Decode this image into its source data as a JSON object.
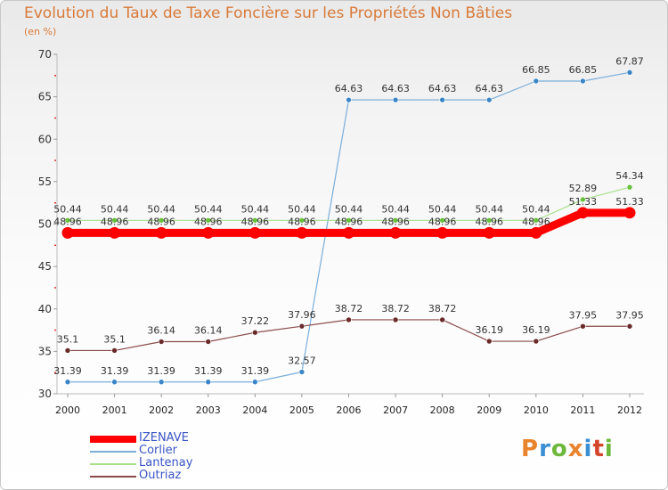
{
  "header": {
    "title": "Evolution du Taux de Taxe Foncière sur les Propriétés Non Bâties",
    "unit": "(en %)"
  },
  "brand": {
    "letters": [
      "P",
      "r",
      "o",
      "x",
      "i",
      "t",
      "i"
    ],
    "colors": [
      "#e8842c",
      "#3a8fd4",
      "#6cb83a",
      "#e8842c",
      "#3a8fd4",
      "#d4442c",
      "#6cb83a"
    ]
  },
  "chart_data": {
    "type": "line",
    "title": "Evolution du Taux de Taxe Foncière sur les Propriétés Non Bâties",
    "ylabel": "(en %)",
    "xlabel": "",
    "x": [
      "2000",
      "2001",
      "2002",
      "2003",
      "2004",
      "2005",
      "2006",
      "2007",
      "2008",
      "2009",
      "2010",
      "2011",
      "2012"
    ],
    "ylim": [
      30,
      70
    ],
    "yticks": [
      30,
      35,
      40,
      45,
      50,
      55,
      60,
      65,
      70
    ],
    "grid": false,
    "legend_position": "bottom-left",
    "series": [
      {
        "name": "IZENAVE",
        "color": "#ff0000",
        "marker": "#ff0000",
        "width": 9,
        "values": [
          48.96,
          48.96,
          48.96,
          48.96,
          48.96,
          48.96,
          48.96,
          48.96,
          48.96,
          48.96,
          48.96,
          51.33,
          51.33
        ],
        "labels": [
          "48.96",
          "48.96",
          "48.96",
          "48.96",
          "48.96",
          "48.96",
          "48.96",
          "48.96",
          "48.96",
          "48.96",
          "48.96",
          "51.33",
          "51.33"
        ]
      },
      {
        "name": "Corlier",
        "color": "#7aaedb",
        "marker": "#3a85c8",
        "width": 1.2,
        "values": [
          31.39,
          31.39,
          31.39,
          31.39,
          31.39,
          32.57,
          64.63,
          64.63,
          64.63,
          64.63,
          66.85,
          66.85,
          67.87
        ],
        "labels": [
          "31.39",
          "31.39",
          "31.39",
          "31.39",
          "31.39",
          "32.57",
          "64.63",
          "64.63",
          "64.63",
          "64.63",
          "66.85",
          "66.85",
          "67.87"
        ]
      },
      {
        "name": "Lantenay",
        "color": "#a8e08a",
        "marker": "#66c23a",
        "width": 1.2,
        "values": [
          50.44,
          50.44,
          50.44,
          50.44,
          50.44,
          50.44,
          50.44,
          50.44,
          50.44,
          50.44,
          50.44,
          52.89,
          54.34
        ],
        "labels": [
          "50.44",
          "50.44",
          "50.44",
          "50.44",
          "50.44",
          "50.44",
          "50.44",
          "50.44",
          "50.44",
          "50.44",
          "50.44",
          "52.89",
          "54.34"
        ]
      },
      {
        "name": "Outriaz",
        "color": "#8a4a4a",
        "marker": "#6a2a2a",
        "width": 1.2,
        "values": [
          35.1,
          35.1,
          36.14,
          36.14,
          37.22,
          37.96,
          38.72,
          38.72,
          38.72,
          36.19,
          36.19,
          37.95,
          37.95
        ],
        "labels": [
          "35.1",
          "35.1",
          "36.14",
          "36.14",
          "37.22",
          "37.96",
          "38.72",
          "38.72",
          "38.72",
          "36.19",
          "36.19",
          "37.95",
          "37.95"
        ]
      }
    ]
  }
}
